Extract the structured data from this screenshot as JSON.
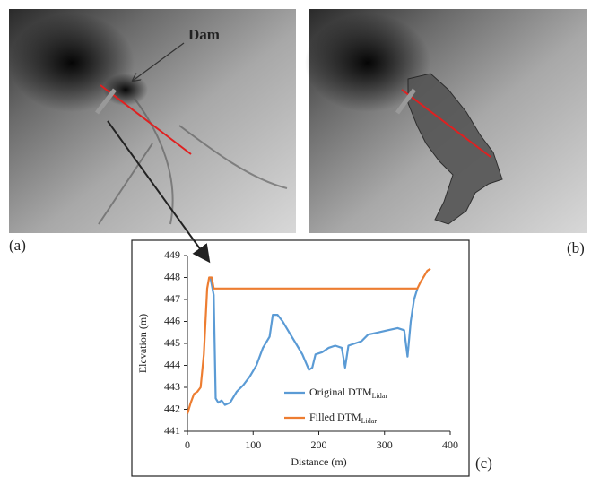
{
  "panels": {
    "a": "(a)",
    "b": "(b)",
    "c": "(c)",
    "annotation": "Dam"
  },
  "chart_data": {
    "type": "line",
    "x_label": "Distance (m)",
    "y_label": "Elevation (m)",
    "xlim": [
      0,
      400
    ],
    "xticks": [
      0,
      100,
      200,
      300,
      400
    ],
    "ylim": [
      441,
      449
    ],
    "yticks": [
      441,
      442,
      443,
      444,
      445,
      446,
      447,
      448,
      449
    ],
    "legend": "lower center",
    "grid": false,
    "series": [
      {
        "name": "Original DTM",
        "subscript": "Lidar",
        "color": "#5b9bd5",
        "x": [
          35,
          40,
          43,
          47,
          52,
          57,
          65,
          75,
          85,
          95,
          105,
          115,
          125,
          130,
          137,
          145,
          155,
          165,
          175,
          185,
          190,
          195,
          205,
          215,
          225,
          235,
          240,
          245,
          255,
          265,
          275,
          290,
          305,
          320,
          330,
          335,
          340,
          345,
          350
        ],
        "values": [
          448.0,
          447.2,
          442.5,
          442.3,
          442.4,
          442.2,
          442.3,
          442.8,
          443.1,
          443.5,
          444.0,
          444.8,
          445.3,
          446.3,
          446.3,
          446.0,
          445.5,
          445.0,
          444.5,
          443.8,
          443.9,
          444.5,
          444.6,
          444.8,
          444.9,
          444.8,
          443.9,
          444.9,
          445.0,
          445.1,
          445.4,
          445.5,
          445.6,
          445.7,
          445.6,
          444.4,
          446.0,
          447.0,
          447.5
        ]
      },
      {
        "name": "Filled DTM",
        "subscript": "Lidar",
        "color": "#ed7d31",
        "x": [
          0,
          5,
          10,
          15,
          20,
          25,
          30,
          33,
          37,
          40,
          350,
          355,
          365,
          370
        ],
        "values": [
          441.8,
          442.3,
          442.7,
          442.8,
          443.0,
          444.5,
          447.5,
          448.0,
          448.0,
          447.5,
          447.5,
          447.8,
          448.3,
          448.4
        ]
      }
    ]
  }
}
